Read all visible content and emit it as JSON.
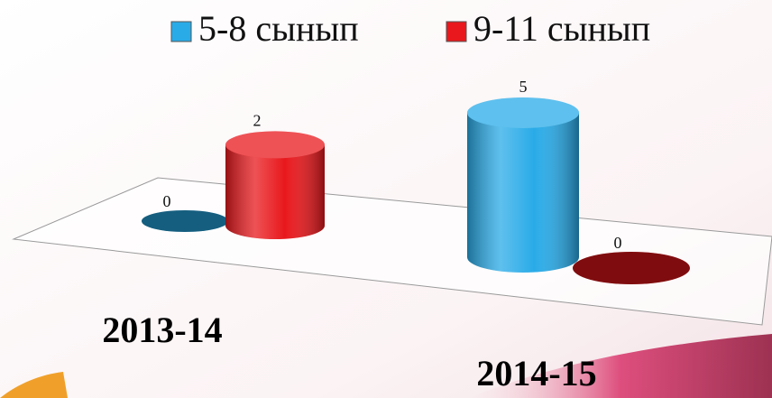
{
  "chart_data": {
    "type": "bar3d",
    "categories": [
      "2013-14",
      "2014-15"
    ],
    "series": [
      {
        "name": "5-8 сынып",
        "color": "#29abe8",
        "values": [
          0,
          5
        ]
      },
      {
        "name": "9-11 сынып",
        "color": "#e8181c",
        "values": [
          2,
          0
        ]
      }
    ],
    "legend": "top"
  }
}
